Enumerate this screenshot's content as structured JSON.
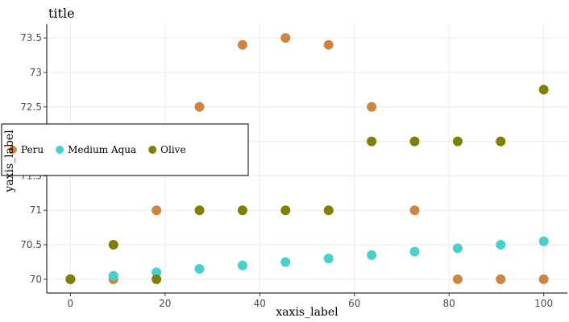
{
  "chart_data": {
    "type": "scatter",
    "title": "title",
    "xlabel": "xaxis_label",
    "ylabel": "yaxis_label",
    "xlim": [
      -5,
      105
    ],
    "ylim": [
      69.8,
      73.7
    ],
    "x_ticks": [
      0,
      20,
      40,
      60,
      80,
      100
    ],
    "y_ticks": [
      70,
      70.5,
      71,
      71.5,
      72,
      72.5,
      73,
      73.5
    ],
    "grid": true,
    "legend_position": "left",
    "series": [
      {
        "name": "Peru",
        "color": "#cd853f",
        "x": [
          0,
          9.09,
          18.18,
          27.27,
          36.36,
          45.45,
          54.55,
          63.64,
          72.73,
          81.82,
          90.91,
          100
        ],
        "y": [
          70.0,
          70.0,
          71.0,
          72.5,
          73.4,
          73.5,
          73.4,
          72.5,
          71.0,
          70.0,
          70.0,
          70.0
        ]
      },
      {
        "name": "Medium Aqua",
        "color": "#48d1cc",
        "x": [
          0,
          9.09,
          18.18,
          27.27,
          36.36,
          45.45,
          54.55,
          63.64,
          72.73,
          81.82,
          90.91,
          100
        ],
        "y": [
          70.0,
          70.05,
          70.1,
          70.15,
          70.2,
          70.25,
          70.3,
          70.35,
          70.4,
          70.45,
          70.5,
          70.55
        ]
      },
      {
        "name": "Olive",
        "color": "#808000",
        "x": [
          0,
          9.09,
          18.18,
          27.27,
          36.36,
          45.45,
          54.55,
          63.64,
          72.73,
          81.82,
          90.91,
          100
        ],
        "y": [
          70.0,
          70.5,
          70.0,
          71.0,
          71.0,
          71.0,
          71.0,
          72.0,
          72.0,
          72.0,
          72.0,
          72.75
        ]
      }
    ]
  }
}
